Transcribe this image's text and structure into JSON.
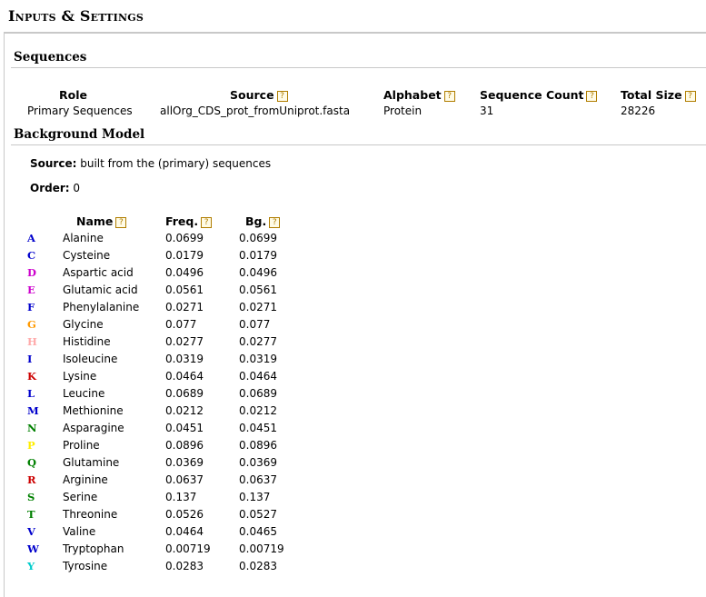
{
  "page": {
    "title": "Inputs & Settings"
  },
  "sequences": {
    "title": "Sequences",
    "headers": {
      "role": "Role",
      "source": "Source",
      "alphabet": "Alphabet",
      "count": "Sequence Count",
      "size": "Total Size"
    },
    "row": {
      "role": "Primary Sequences",
      "source": "allOrg_CDS_prot_fromUniprot.fasta",
      "alphabet": "Protein",
      "count": "31",
      "size": "28226"
    }
  },
  "background": {
    "title": "Background Model",
    "source_label": "Source:",
    "source_value": "built from the (primary) sequences",
    "order_label": "Order:",
    "order_value": "0",
    "headers": {
      "name": "Name",
      "freq": "Freq.",
      "bg": "Bg."
    },
    "rows": [
      {
        "letter": "A",
        "name": "Alanine",
        "freq": "0.0699",
        "bg": "0.0699",
        "color": "#0000cc"
      },
      {
        "letter": "C",
        "name": "Cysteine",
        "freq": "0.0179",
        "bg": "0.0179",
        "color": "#0000cc"
      },
      {
        "letter": "D",
        "name": "Aspartic acid",
        "freq": "0.0496",
        "bg": "0.0496",
        "color": "#cc00cc"
      },
      {
        "letter": "E",
        "name": "Glutamic acid",
        "freq": "0.0561",
        "bg": "0.0561",
        "color": "#cc00cc"
      },
      {
        "letter": "F",
        "name": "Phenylalanine",
        "freq": "0.0271",
        "bg": "0.0271",
        "color": "#0000cc"
      },
      {
        "letter": "G",
        "name": "Glycine",
        "freq": "0.077",
        "bg": "0.077",
        "color": "#ff9900"
      },
      {
        "letter": "H",
        "name": "Histidine",
        "freq": "0.0277",
        "bg": "0.0277",
        "color": "#ffaaaa"
      },
      {
        "letter": "I",
        "name": "Isoleucine",
        "freq": "0.0319",
        "bg": "0.0319",
        "color": "#0000cc"
      },
      {
        "letter": "K",
        "name": "Lysine",
        "freq": "0.0464",
        "bg": "0.0464",
        "color": "#cc0000"
      },
      {
        "letter": "L",
        "name": "Leucine",
        "freq": "0.0689",
        "bg": "0.0689",
        "color": "#0000cc"
      },
      {
        "letter": "M",
        "name": "Methionine",
        "freq": "0.0212",
        "bg": "0.0212",
        "color": "#0000cc"
      },
      {
        "letter": "N",
        "name": "Asparagine",
        "freq": "0.0451",
        "bg": "0.0451",
        "color": "#008000"
      },
      {
        "letter": "P",
        "name": "Proline",
        "freq": "0.0896",
        "bg": "0.0896",
        "color": "#ffee00"
      },
      {
        "letter": "Q",
        "name": "Glutamine",
        "freq": "0.0369",
        "bg": "0.0369",
        "color": "#008000"
      },
      {
        "letter": "R",
        "name": "Arginine",
        "freq": "0.0637",
        "bg": "0.0637",
        "color": "#cc0000"
      },
      {
        "letter": "S",
        "name": "Serine",
        "freq": "0.137",
        "bg": "0.137",
        "color": "#008000"
      },
      {
        "letter": "T",
        "name": "Threonine",
        "freq": "0.0526",
        "bg": "0.0527",
        "color": "#008000"
      },
      {
        "letter": "V",
        "name": "Valine",
        "freq": "0.0464",
        "bg": "0.0465",
        "color": "#0000cc"
      },
      {
        "letter": "W",
        "name": "Tryptophan",
        "freq": "0.00719",
        "bg": "0.00719",
        "color": "#0000cc"
      },
      {
        "letter": "Y",
        "name": "Tyrosine",
        "freq": "0.0283",
        "bg": "0.0283",
        "color": "#00cccc"
      }
    ]
  },
  "help_icon": {
    "glyph": "?",
    "icon": "help-icon"
  }
}
